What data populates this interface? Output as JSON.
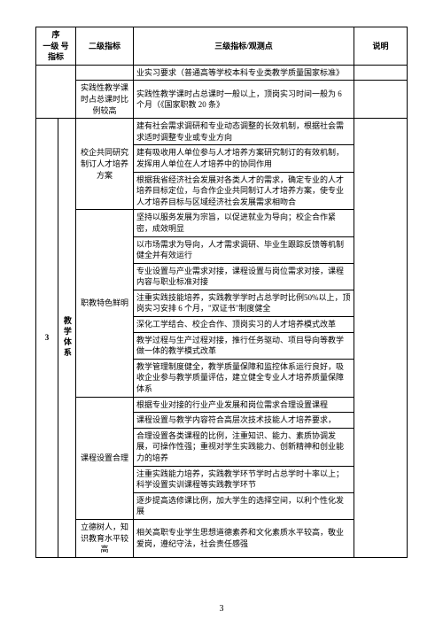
{
  "headers": {
    "h1a": "序",
    "h1b": "指标",
    "h1c": "一级  号",
    "h2": "二级指标",
    "h3": "三级指标/观测点",
    "h4": "说明"
  },
  "row1": {
    "col4": "业实习要求（普通高等学校本科专业类教学质量国家标准》"
  },
  "row2": {
    "col3": "实践性教学课时占总课时比例较高",
    "col4": "实践性教学课时占总课时一般以上，顶岗实习时间一般为 6 个月（《国家职教 20 条》"
  },
  "sec3_num": "3",
  "sec3_title": "教学体系",
  "g1_title": "校企共同研究制订人才培养方案",
  "g1_r1": "建有社会需求调研和专业动态调整的长效机制，根据社会需求适时调整专业或专业方向",
  "g1_r2": "建有吸收用人单位参与人才培养方案研究制订的有效机制，发挥用人单位在人才培养中的协同作用",
  "g1_r3": "根据我省经济社会发展对各类人才的需求，确定专业的人才培养目标定位，与合作企业共同制订人才培养方案，使专业人才培养目标与区域经济社会发展需求相吻合",
  "g2_title": "职教特色鲜明",
  "g2_r1": "坚持以服务发展为宗旨，以促进就业为导向；校企合作紧密，成效明显",
  "g2_r2": "以市场需求为导向，人才需求调研、毕业生跟踪反馈等机制健全并有效运行",
  "g2_r3": "专业设置与产业需求对接，课程设置与岗位需求对接，课程内容与职业标准对接",
  "g2_r4": "注重实践技能培养，实践教学学时占总学时比例50%以上，顶岗实习安排 6 个月，\"双证书\"制度健全",
  "g2_r5": "深化工学结合、校企合作、顶岗实习的人才培养模式改革",
  "g2_r6": "教学过程与生产过程对接，推行任务驱动、项目导向等教学做一体的教学模式改革",
  "g2_r7": "教学管理制度健全，教学质量保障和监控体系运行良好，吸收企业参与教学质量评估，建立健全专业人才培养质量保障体系",
  "g3_title": "课程设置合理",
  "g3_r1": "根据专业对接的行业产业发展和岗位需求合理设置课程",
  "g3_r2": "课程设置与教学内容符合高层次技术技能人才培养要求，",
  "g3_r3": "合理设置各类课程的比例，注重知识、能力、素质协调发展，可操作性强；重视对学生实践能力、创新精神和创业能力的培养",
  "g3_r4": "注重实践能力培养，实践教学环节学时占总学时十率以上；科学设置实训课程等实践教学环节",
  "g3_r5": "逐步提高选修课比例，加大学生的选择空间，以利个性化发展",
  "g4_title": "立德树人，知识教育水平较高",
  "g4_r1": "相关高职专业学生思想道德素养和文化素质水平较高，敬业爱岗，遵纪守法，社会责任感强",
  "page": "3"
}
